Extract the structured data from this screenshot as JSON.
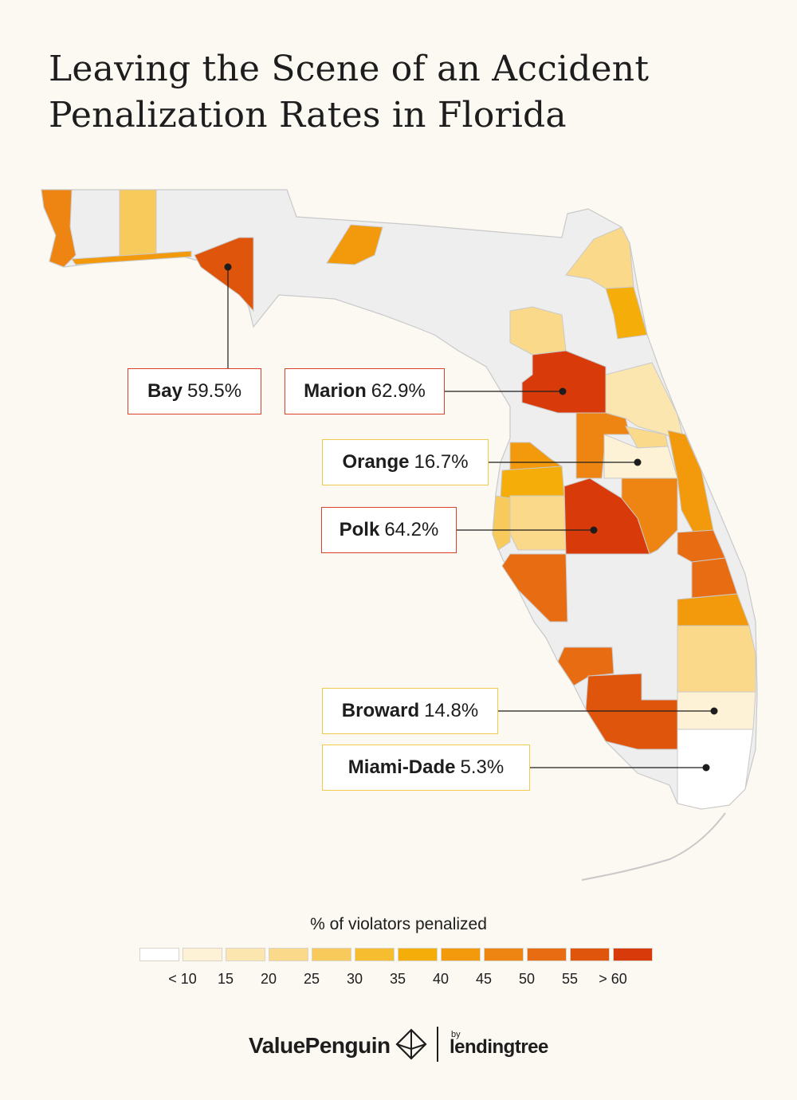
{
  "title": {
    "line1": "Leaving the Scene of an Accident",
    "line2": "Penalization Rates in Florida"
  },
  "legend": {
    "title": "% of violators penalized",
    "bins": [
      {
        "label": "< 10",
        "color": "#ffffff"
      },
      {
        "label": "15",
        "color": "#fdf1d6"
      },
      {
        "label": "20",
        "color": "#fce6b0"
      },
      {
        "label": "25",
        "color": "#fad98a"
      },
      {
        "label": "30",
        "color": "#f8ca5c"
      },
      {
        "label": "35",
        "color": "#f7bd31"
      },
      {
        "label": "40",
        "color": "#f5ad0a"
      },
      {
        "label": "45",
        "color": "#f29a0c"
      },
      {
        "label": "50",
        "color": "#ee8412"
      },
      {
        "label": "55",
        "color": "#e86c12"
      },
      {
        "label": "> 60",
        "color": "#e0550c"
      },
      {
        "label": "",
        "color": "#d93a0a"
      }
    ]
  },
  "callouts": [
    {
      "name": "Bay",
      "value": "59.5%"
    },
    {
      "name": "Marion",
      "value": "62.9%"
    },
    {
      "name": "Orange",
      "value": "16.7%"
    },
    {
      "name": "Polk",
      "value": "64.2%"
    },
    {
      "name": "Broward",
      "value": "14.8%"
    },
    {
      "name": "Miami-Dade",
      "value": "5.3%"
    }
  ],
  "colors": {
    "no_data": "#eeeeee",
    "county_border": "#c9c9c9",
    "callout_red": "#d9412a",
    "callout_yellow": "#f2c94c"
  },
  "brand": {
    "name": "ValuePenguin",
    "by": "by",
    "partner": "lendingtree"
  }
}
